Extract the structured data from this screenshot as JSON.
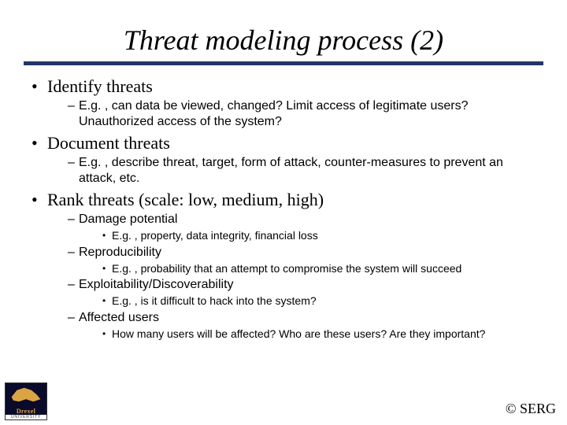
{
  "title": "Threat modeling process (2)",
  "colors": {
    "rule": "#1f3864",
    "text": "#000000",
    "logo_bg": "#0a0a2a",
    "logo_gold": "#d9a441",
    "background": "#ffffff"
  },
  "fonts": {
    "title": {
      "family": "Times New Roman",
      "size_pt": 36,
      "style": "italic"
    },
    "level1": {
      "family": "Times New Roman",
      "size_pt": 22
    },
    "level2": {
      "family": "Arial",
      "size_pt": 16
    },
    "level3": {
      "family": "Arial",
      "size_pt": 14
    },
    "footer": {
      "family": "Times New Roman",
      "size_pt": 18
    }
  },
  "bullets": {
    "items": [
      {
        "text": "Identify threats",
        "sub": [
          {
            "text": "E.g. , can data be viewed, changed? Limit access of legitimate users? Unauthorized access of the system?"
          }
        ]
      },
      {
        "text": "Document threats",
        "sub": [
          {
            "text": "E.g. , describe threat, target, form of attack, counter-measures to prevent an attack, etc."
          }
        ]
      },
      {
        "text": "Rank threats (scale: low, medium, high)",
        "sub": [
          {
            "text": "Damage potential",
            "sub": [
              {
                "text": "E.g. , property, data integrity, financial loss"
              }
            ]
          },
          {
            "text": "Reproducibility",
            "sub": [
              {
                "text": "E.g. , probability that an attempt to compromise the system will succeed"
              }
            ]
          },
          {
            "text": "Exploitability/Discoverability",
            "sub": [
              {
                "text": "E.g. , is it difficult to hack into the system?"
              }
            ]
          },
          {
            "text": "Affected users",
            "sub": [
              {
                "text": "How many users will be affected? Who are these users? Are they important?"
              }
            ]
          }
        ]
      }
    ]
  },
  "logo": {
    "name": "Drexel",
    "sub": "UNIVERSITY"
  },
  "footer": "© SERG"
}
